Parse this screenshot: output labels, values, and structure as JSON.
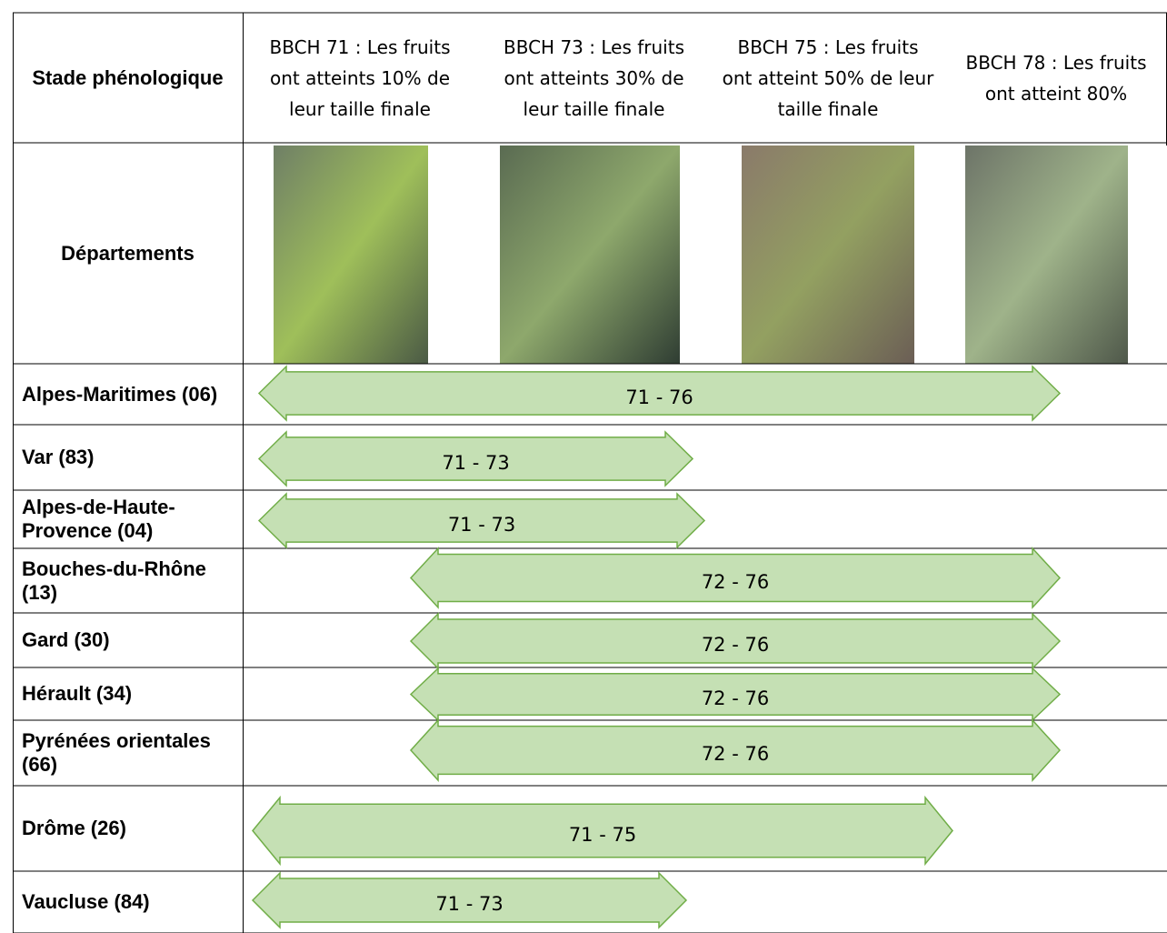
{
  "header": {
    "stage_label": "Stade phénologique",
    "stages": [
      "BBCH 71 : Les fruits ont atteints 10% de leur taille finale",
      "BBCH 73 : Les fruits ont atteints 30% de leur taille finale",
      "BBCH 75 : Les fruits ont atteint 50% de leur taille finale",
      "BBCH 78 : Les fruits ont atteint 80%"
    ]
  },
  "photo_row": {
    "label": "Départements"
  },
  "rows": [
    {
      "department": "Alpes-Maritimes (06)",
      "range": "71 - 76"
    },
    {
      "department": "Var (83)",
      "range": "71 - 73"
    },
    {
      "department": "Alpes-de-Haute-Provence (04)",
      "range": "71 - 73"
    },
    {
      "department": "Bouches-du-Rhône (13)",
      "range": "72 - 76"
    },
    {
      "department": "Gard (30)",
      "range": "72 - 76"
    },
    {
      "department": "Hérault (34)",
      "range": "72 - 76"
    },
    {
      "department": "Pyrénées orientales (66)",
      "range": "72 - 76"
    },
    {
      "department": "Drôme (26)",
      "range": "71 - 75"
    },
    {
      "department": "Vaucluse (84)",
      "range": "71 - 73"
    }
  ]
}
